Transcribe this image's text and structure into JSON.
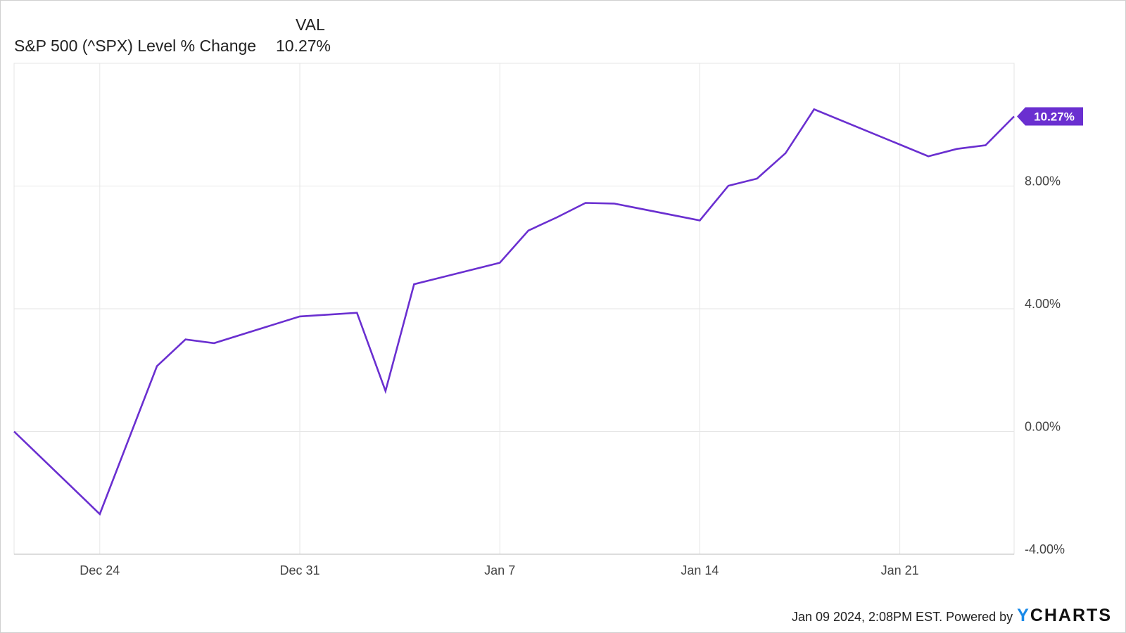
{
  "legend": {
    "column_header": "VAL",
    "series_label": "S&P 500 (^SPX) Level % Change",
    "series_value": "10.27%"
  },
  "footer": {
    "timestamp": "Jan 09 2024, 2:08PM EST. Powered by",
    "brand_y": "Y",
    "brand_rest": "CHARTS"
  },
  "colors": {
    "line": "#6a2fd0",
    "grid": "#e6e6e6",
    "axis": "#bbbbbb"
  },
  "chart_data": {
    "type": "line",
    "title": "",
    "xlabel": "",
    "ylabel": "",
    "x_ticks": [
      "Dec 24",
      "Dec 31",
      "Jan 7",
      "Jan 14",
      "Jan 21"
    ],
    "y_ticks": [
      "8.00%",
      "4.00%",
      "0.00%",
      "-4.00%"
    ],
    "ylim": [
      -4,
      12
    ],
    "grid": true,
    "end_label": "10.27%",
    "series": [
      {
        "name": "S&P 500 (^SPX) Level % Change",
        "x": [
          "Dec 21",
          "Dec 24",
          "Dec 26",
          "Dec 27",
          "Dec 28",
          "Dec 31",
          "Jan 2",
          "Jan 3",
          "Jan 4",
          "Jan 7",
          "Jan 8",
          "Jan 9",
          "Jan 10",
          "Jan 11",
          "Jan 14",
          "Jan 15",
          "Jan 16",
          "Jan 17",
          "Jan 18",
          "Jan 22",
          "Jan 23",
          "Jan 24",
          "Jan 25"
        ],
        "values": [
          0.0,
          -2.69,
          2.13,
          3.0,
          2.88,
          3.75,
          3.87,
          1.32,
          4.8,
          5.5,
          6.55,
          6.98,
          7.45,
          7.43,
          6.88,
          8.01,
          8.24,
          9.07,
          10.5,
          8.97,
          9.21,
          9.33,
          10.27
        ]
      }
    ]
  }
}
